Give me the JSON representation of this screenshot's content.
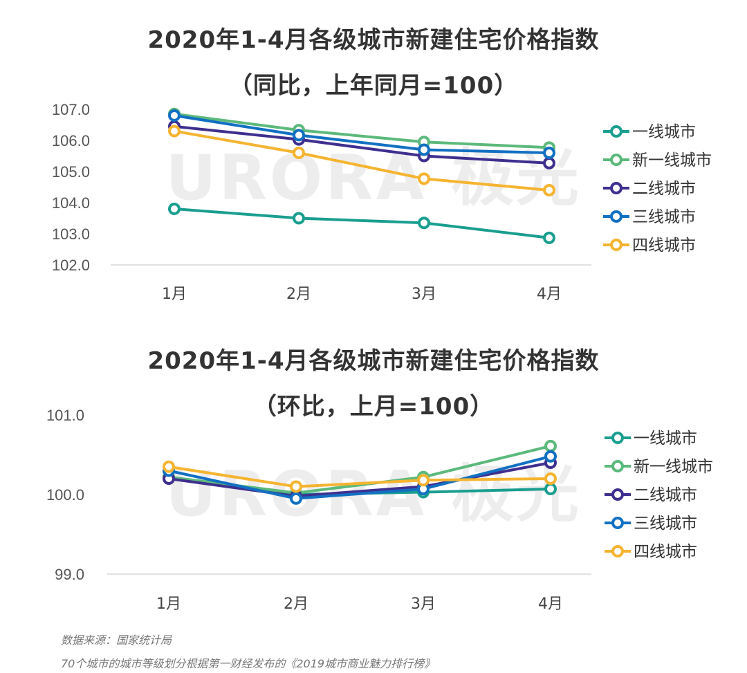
{
  "charts": [
    {
      "title_line1": "2020年1-4月各级城市新建住宅价格指数",
      "title_line2": "（同比，上年同月=100）"
    },
    {
      "title_line1": "2020年1-4月各级城市新建住宅价格指数",
      "title_line2": "（环比，上月=100）"
    }
  ],
  "watermark": "URORA 极光",
  "footer": {
    "source": "数据来源：国家统计局",
    "note": "70个城市的城市等级划分根据第一财经发布的《2019城市商业魅力排行榜》"
  },
  "colors": {
    "一线城市": "#1a9e8f",
    "新一线城市": "#5cb97c",
    "二线城市": "#3f2f8f",
    "三线城市": "#1270c2",
    "四线城市": "#f5b430"
  },
  "chart_data": [
    {
      "type": "line",
      "title": "2020年1-4月各级城市新建住宅价格指数（同比，上年同月=100）",
      "categories": [
        "1月",
        "2月",
        "3月",
        "4月"
      ],
      "ylim": [
        102.0,
        107.0
      ],
      "yticks": [
        "102.0",
        "103.0",
        "104.0",
        "105.0",
        "106.0",
        "107.0"
      ],
      "legend_position": "right",
      "series": [
        {
          "name": "一线城市",
          "values": [
            103.8,
            103.5,
            103.35,
            102.87
          ]
        },
        {
          "name": "新一线城市",
          "values": [
            106.85,
            106.33,
            105.95,
            105.77
          ]
        },
        {
          "name": "二线城市",
          "values": [
            106.45,
            106.03,
            105.5,
            105.27
          ]
        },
        {
          "name": "三线城市",
          "values": [
            106.8,
            106.17,
            105.7,
            105.6
          ]
        },
        {
          "name": "四线城市",
          "values": [
            106.3,
            105.6,
            104.77,
            104.4
          ]
        }
      ]
    },
    {
      "type": "line",
      "title": "2020年1-4月各级城市新建住宅价格指数（环比，上月=100）",
      "categories": [
        "1月",
        "2月",
        "3月",
        "4月"
      ],
      "ylim": [
        99.0,
        101.0
      ],
      "yticks": [
        "99.0",
        "100.0",
        "101.0"
      ],
      "legend_position": "right",
      "series": [
        {
          "name": "一线城市",
          "values": [
            100.22,
            100.0,
            100.03,
            100.07
          ]
        },
        {
          "name": "新一线城市",
          "values": [
            100.22,
            100.02,
            100.22,
            100.61
          ]
        },
        {
          "name": "二线城市",
          "values": [
            100.2,
            99.98,
            100.1,
            100.4
          ]
        },
        {
          "name": "三线城市",
          "values": [
            100.3,
            99.95,
            100.07,
            100.48
          ]
        },
        {
          "name": "四线城市",
          "values": [
            100.35,
            100.1,
            100.18,
            100.2
          ]
        }
      ]
    }
  ]
}
